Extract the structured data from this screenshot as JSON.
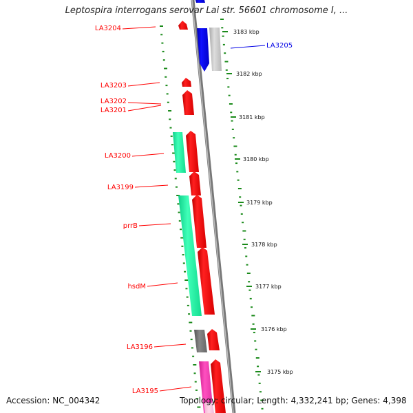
{
  "title": "Leptospira interrogans serovar Lai str. 56601 chromosome I, ...",
  "footer": {
    "accession": "Accession: NC_004342",
    "stats": "Topology: circular; Length: 4,332,241 bp; Genes: 4,398"
  },
  "colors": {
    "red": "#ff0000",
    "blue": "#0000e6",
    "green": "#19f5a0",
    "gray": "#777777",
    "lightgray": "#c8c8c8",
    "pink": "#f03cb4",
    "tick": "#1a8a1a",
    "backbone": "#888888"
  },
  "gene_labels": [
    {
      "text": "LA3204",
      "color": "red"
    },
    {
      "text": "LA3205",
      "color": "blue"
    },
    {
      "text": "LA3203",
      "color": "red"
    },
    {
      "text": "LA3202",
      "color": "red"
    },
    {
      "text": "LA3201",
      "color": "red"
    },
    {
      "text": "LA3200",
      "color": "red"
    },
    {
      "text": "LA3199",
      "color": "red"
    },
    {
      "text": "prrB",
      "color": "red"
    },
    {
      "text": "hsdM",
      "color": "red"
    },
    {
      "text": "LA3196",
      "color": "red"
    },
    {
      "text": "LA3195",
      "color": "red"
    }
  ],
  "scale_labels": [
    "3183 kbp",
    "3182 kbp",
    "3181 kbp",
    "3180 kbp",
    "3179 kbp",
    "3178 kbp",
    "3177 kbp",
    "3176 kbp",
    "3175 kbp"
  ]
}
